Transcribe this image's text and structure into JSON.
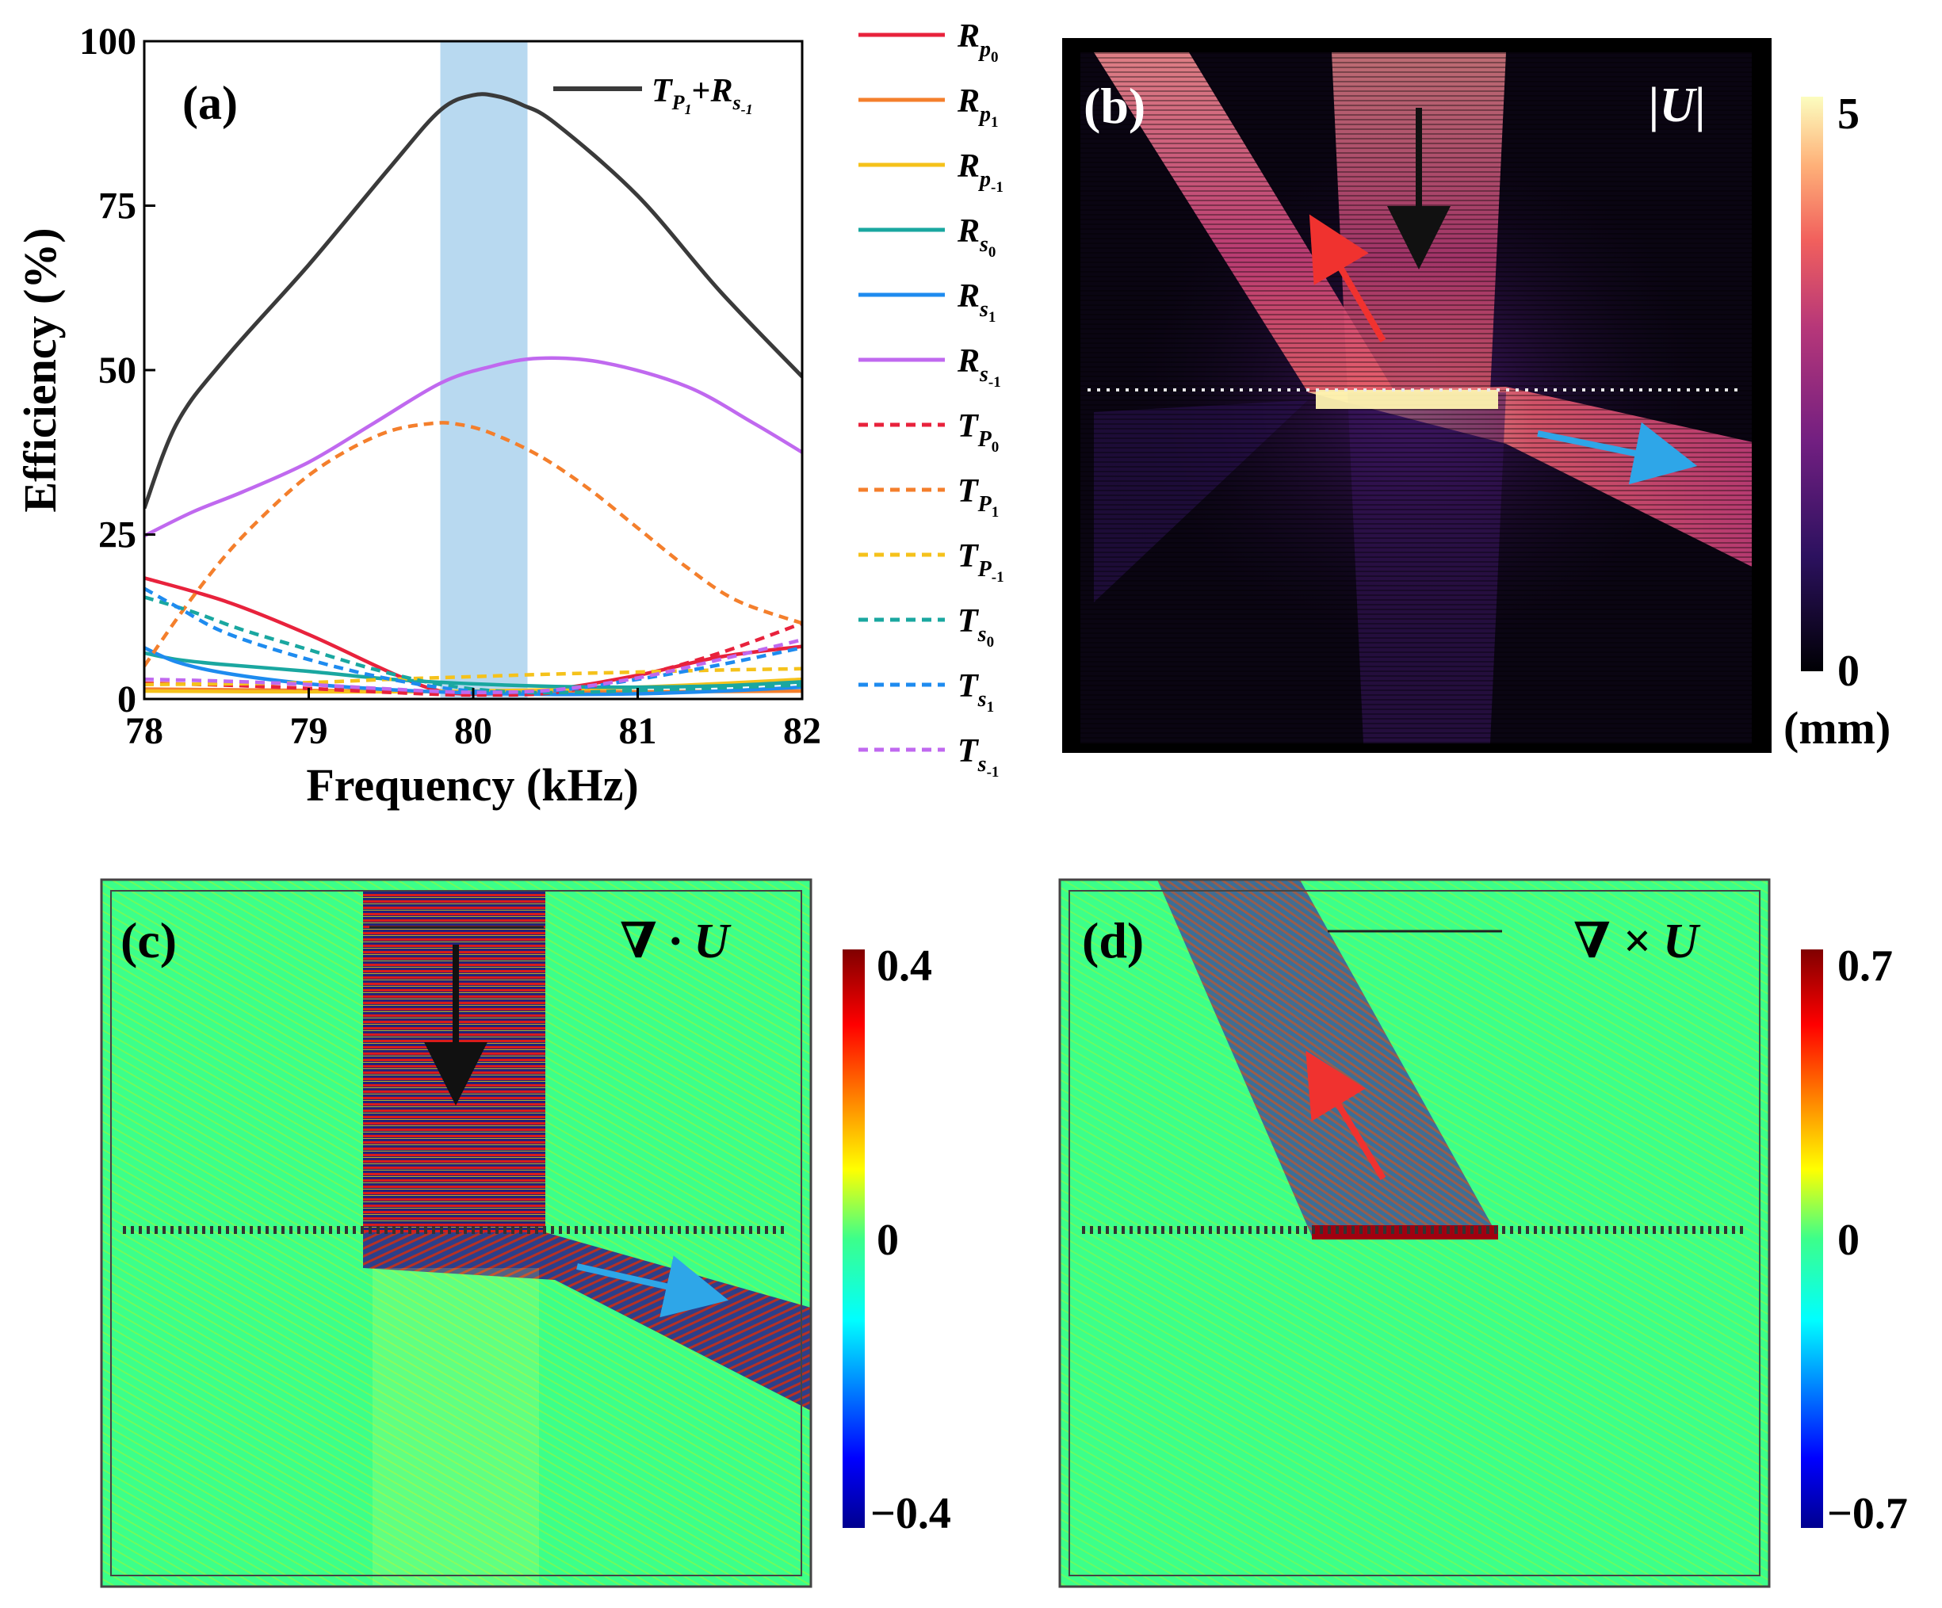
{
  "chart_data": [
    {
      "panel": "(a)",
      "type": "line",
      "xlabel": "Frequency (kHz)",
      "ylabel": "Efficiency (%)",
      "xlim": [
        78,
        82
      ],
      "ylim": [
        0,
        100
      ],
      "xticks": [
        "78",
        "79",
        "80",
        "81",
        "82"
      ],
      "yticks": [
        "0",
        "25",
        "50",
        "75",
        "100"
      ],
      "highlight_band": [
        79.8,
        80.33
      ],
      "colors": {
        "black": "#3a3a3a",
        "red": "#e8223c",
        "orange": "#f47f2c",
        "yellow": "#f5c21b",
        "teal": "#1aa7a0",
        "blue": "#1e8bef",
        "purple": "#c069ef",
        "band": "#b8d9f0"
      },
      "series": [
        {
          "key": "sum",
          "name": "T_P1+R_S-1",
          "color": "black",
          "dash": false,
          "x": [
            78,
            78.2,
            78.5,
            79,
            79.5,
            79.8,
            80,
            80.15,
            80.3,
            80.5,
            81,
            81.5,
            82
          ],
          "y": [
            29,
            42,
            52,
            66,
            81,
            89.5,
            91.8,
            91.6,
            90.3,
            87.5,
            76.5,
            62,
            49
          ]
        },
        {
          "key": "Rp0",
          "name": "R_P0",
          "color": "red",
          "dash": false,
          "x": [
            78,
            78.5,
            79,
            79.5,
            79.8,
            80.1,
            80.5,
            81,
            81.5,
            82
          ],
          "y": [
            18.4,
            14.8,
            9.8,
            4,
            1.2,
            0.8,
            1.5,
            3.6,
            6.4,
            8
          ]
        },
        {
          "key": "Rp1",
          "name": "R_P1",
          "color": "orange",
          "dash": false,
          "x": [
            78,
            79,
            80,
            81,
            82
          ],
          "y": [
            1.5,
            1.3,
            1.1,
            1.1,
            1.2
          ]
        },
        {
          "key": "Rp-1",
          "name": "R_P-1",
          "color": "yellow",
          "dash": false,
          "x": [
            78,
            79,
            80,
            81,
            82
          ],
          "y": [
            1.2,
            1.1,
            1.2,
            1.8,
            3
          ]
        },
        {
          "key": "Rs0",
          "name": "R_S0",
          "color": "teal",
          "dash": false,
          "x": [
            78,
            78.2,
            78.5,
            79,
            79.5,
            80,
            80.5,
            81,
            81.5,
            82
          ],
          "y": [
            7,
            6,
            5.2,
            4.2,
            3,
            2.3,
            1.9,
            1.8,
            2,
            2.6
          ]
        },
        {
          "key": "Rs1",
          "name": "R_S1",
          "color": "blue",
          "dash": false,
          "x": [
            78,
            78.2,
            78.5,
            79,
            79.5,
            80,
            80.5,
            81,
            81.5,
            82
          ],
          "y": [
            7.8,
            5.6,
            3.9,
            2.3,
            1.4,
            0.9,
            0.7,
            0.8,
            1.2,
            1.8
          ]
        },
        {
          "key": "Rs-1",
          "name": "R_S-1",
          "color": "purple",
          "dash": false,
          "x": [
            78,
            78.3,
            78.6,
            79,
            79.4,
            79.8,
            80.1,
            80.4,
            80.8,
            81.3,
            81.7,
            82
          ],
          "y": [
            24.8,
            28.5,
            31.5,
            36,
            42,
            48,
            50.5,
            51.8,
            51.1,
            47.5,
            42,
            37.5
          ]
        },
        {
          "key": "Tp0",
          "name": "T_P0",
          "color": "red",
          "dash": true,
          "x": [
            78,
            78.5,
            79,
            79.5,
            80,
            80.5,
            81,
            81.5,
            82
          ],
          "y": [
            2.4,
            2.1,
            1.6,
            1,
            0.6,
            1,
            3.5,
            7,
            11.5
          ]
        },
        {
          "key": "Tp1",
          "name": "T_P1",
          "color": "orange",
          "dash": true,
          "x": [
            78,
            78.25,
            78.5,
            78.75,
            79,
            79.25,
            79.5,
            79.75,
            79.9,
            80.1,
            80.4,
            80.7,
            81,
            81.3,
            81.6,
            82
          ],
          "y": [
            5,
            14,
            22,
            28.5,
            34,
            38,
            40.8,
            41.9,
            41.8,
            40.5,
            37,
            32,
            26,
            20,
            15,
            11.5
          ]
        },
        {
          "key": "Tp-1",
          "name": "T_P-1",
          "color": "yellow",
          "dash": true,
          "x": [
            78,
            78.5,
            79,
            79.5,
            80,
            80.5,
            81,
            81.5,
            82
          ],
          "y": [
            2.2,
            2.3,
            2.5,
            3,
            3.4,
            3.8,
            4.1,
            4.4,
            4.6
          ]
        },
        {
          "key": "Ts0",
          "name": "T_S0",
          "color": "teal",
          "dash": true,
          "x": [
            78,
            78.3,
            78.6,
            79,
            79.4,
            79.8,
            80.2,
            80.6,
            81,
            81.5,
            82
          ],
          "y": [
            15.5,
            13.2,
            10.5,
            7.5,
            4.5,
            2.2,
            1.1,
            1,
            1.3,
            1.7,
            2.1
          ]
        },
        {
          "key": "Ts1",
          "name": "T_S1",
          "color": "blue",
          "dash": true,
          "x": [
            78,
            78.2,
            78.5,
            79,
            79.5,
            80,
            80.5,
            81,
            81.5,
            82
          ],
          "y": [
            16.8,
            14,
            10,
            6,
            3,
            1.2,
            1.3,
            3,
            5.2,
            7.8
          ]
        },
        {
          "key": "Ts-1",
          "name": "T_S-1",
          "color": "purple",
          "dash": true,
          "x": [
            78,
            78.5,
            79,
            79.5,
            80,
            80.5,
            81,
            81.5,
            82
          ],
          "y": [
            3,
            2.7,
            2.2,
            1.5,
            1,
            1.4,
            3.2,
            6,
            9
          ]
        }
      ]
    },
    {
      "panel": "(b)",
      "type": "heatmap",
      "field_label": "|U|",
      "colorbar": {
        "max_label": "5",
        "min_label": "0",
        "unit": "(mm)",
        "range": [
          0,
          5
        ]
      }
    },
    {
      "panel": "(c)",
      "type": "heatmap",
      "field_label": "∇ · U",
      "colorbar": {
        "max_label": "0.4",
        "mid_label": "0",
        "min_label": "−0.4",
        "range": [
          -0.4,
          0.4
        ]
      }
    },
    {
      "panel": "(d)",
      "type": "heatmap",
      "field_label": "∇ × U",
      "colorbar": {
        "max_label": "0.7",
        "mid_label": "0",
        "min_label": "−0.7",
        "range": [
          -0.7,
          0.7
        ]
      }
    }
  ],
  "legend": [
    {
      "key": "Rp0",
      "base": "R",
      "sub": "p",
      "subsub": "0"
    },
    {
      "key": "Rp1",
      "base": "R",
      "sub": "p",
      "subsub": "1"
    },
    {
      "key": "Rp-1",
      "base": "R",
      "sub": "p",
      "subsub": "-1"
    },
    {
      "key": "Rs0",
      "base": "R",
      "sub": "s",
      "subsub": "0"
    },
    {
      "key": "Rs1",
      "base": "R",
      "sub": "s",
      "subsub": "1"
    },
    {
      "key": "Rs-1",
      "base": "R",
      "sub": "s",
      "subsub": "-1"
    },
    {
      "key": "Tp0",
      "base": "T",
      "sub": "P",
      "subsub": "0"
    },
    {
      "key": "Tp1",
      "base": "T",
      "sub": "P",
      "subsub": "1"
    },
    {
      "key": "Tp-1",
      "base": "T",
      "sub": "P",
      "subsub": "-1"
    },
    {
      "key": "Ts0",
      "base": "T",
      "sub": "s",
      "subsub": "0"
    },
    {
      "key": "Ts1",
      "base": "T",
      "sub": "s",
      "subsub": "1"
    },
    {
      "key": "Ts-1",
      "base": "T",
      "sub": "s",
      "subsub": "-1"
    }
  ],
  "inset_legend": {
    "t_base": "T",
    "t_sub": "P",
    "t_subsub": "1",
    "plus": "+",
    "r_base": "R",
    "r_sub": "s",
    "r_subsub": "-1"
  }
}
